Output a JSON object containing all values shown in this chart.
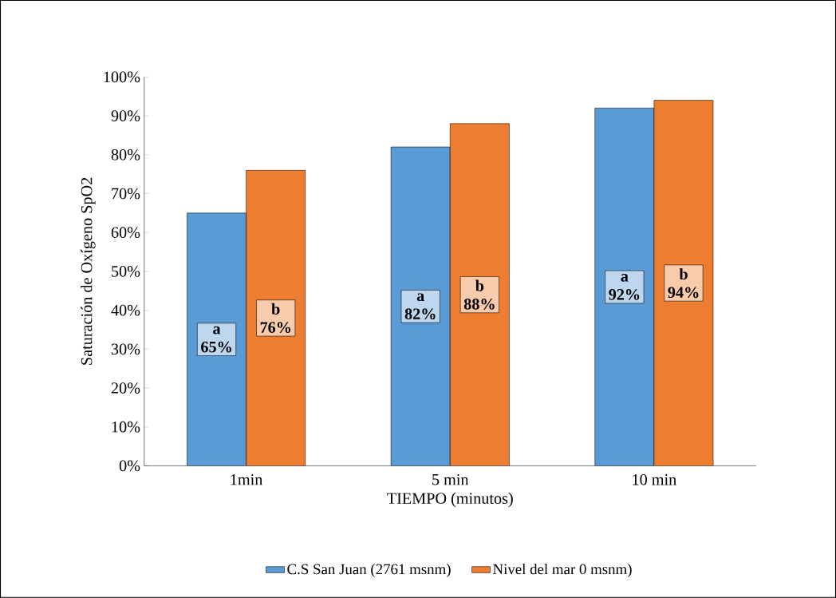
{
  "chart_data": {
    "type": "bar",
    "xlabel": "TIEMPO (minutos)",
    "ylabel": "Saturación de Oxígeno SpO2",
    "categories": [
      "1min",
      "5 min",
      "10 min"
    ],
    "series": [
      {
        "name": "C.S San Juan (2761 msnm)",
        "color": "#5b9bd5",
        "values": [
          65,
          82,
          92
        ],
        "value_labels": [
          "a 65%",
          "a 82%",
          "a 92%"
        ]
      },
      {
        "name": "Nivel del mar 0 msnm)",
        "color": "#ed7d31",
        "values": [
          76,
          88,
          94
        ],
        "value_labels": [
          "b 76%",
          "b 88%",
          "b 94%"
        ]
      }
    ],
    "ylim": [
      0,
      100
    ],
    "yticks": [
      {
        "value": 0,
        "label": "0%"
      },
      {
        "value": 10,
        "label": "10%"
      },
      {
        "value": 20,
        "label": "20%"
      },
      {
        "value": 30,
        "label": "30%"
      },
      {
        "value": 40,
        "label": "40%"
      },
      {
        "value": 50,
        "label": "50%"
      },
      {
        "value": 60,
        "label": "60%"
      },
      {
        "value": 70,
        "label": "70%"
      },
      {
        "value": 80,
        "label": "80%"
      },
      {
        "value": 90,
        "label": "90%"
      },
      {
        "value": 100,
        "label": "100%"
      }
    ],
    "grid": false,
    "legend": "bottom"
  }
}
